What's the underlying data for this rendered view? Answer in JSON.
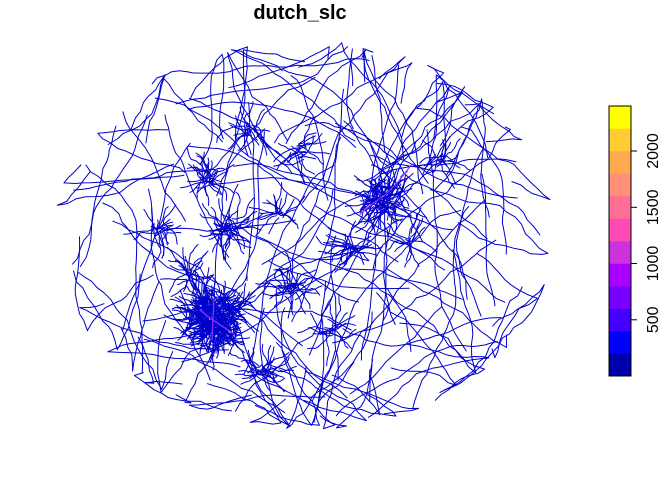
{
  "title": "dutch_slc",
  "legend": {
    "ticks": [
      "500",
      "1000",
      "1500",
      "2000"
    ],
    "tick_values": [
      500,
      1000,
      1500,
      2000
    ],
    "range": [
      0,
      2400
    ],
    "colors": [
      "#0000AA",
      "#0000FF",
      "#4400FF",
      "#7700FF",
      "#AA00FF",
      "#CC33DD",
      "#FF4CB5",
      "#FF6E96",
      "#FF8F78",
      "#FFAA50",
      "#FFCC33",
      "#FFFF00"
    ]
  },
  "network": {
    "edge_color": "#0000CC",
    "highlight_color": "#9933FF"
  }
}
